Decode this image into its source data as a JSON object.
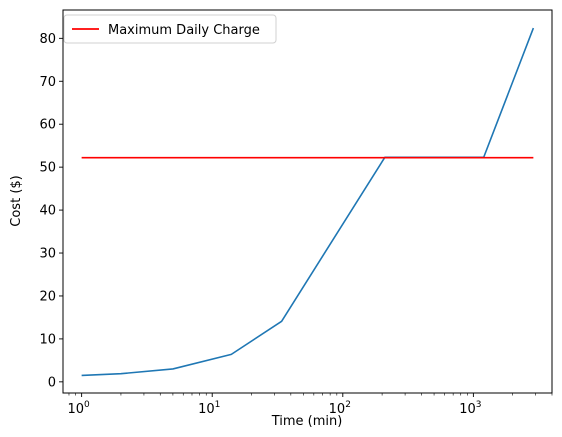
{
  "chart_data": {
    "type": "line",
    "title": "",
    "xlabel": "Time (min)",
    "ylabel": "Cost ($)",
    "xscale": "log",
    "xlim": [
      0.72,
      4000
    ],
    "ylim": [
      -2.6,
      86.6
    ],
    "grid": false,
    "legend_position": "top-left",
    "x_ticks": [
      {
        "value": 1,
        "base": "10",
        "exp": "0"
      },
      {
        "value": 10,
        "base": "10",
        "exp": "1"
      },
      {
        "value": 100,
        "base": "10",
        "exp": "2"
      },
      {
        "value": 1000,
        "base": "10",
        "exp": "3"
      }
    ],
    "y_ticks": [
      0,
      10,
      20,
      30,
      40,
      50,
      60,
      70,
      80
    ],
    "series": [
      {
        "name": "",
        "color": "#1f77b4",
        "points": [
          {
            "x": 1,
            "y": 1.5
          },
          {
            "x": 2,
            "y": 1.9
          },
          {
            "x": 5,
            "y": 3.0
          },
          {
            "x": 14,
            "y": 6.4
          },
          {
            "x": 34,
            "y": 14.1
          },
          {
            "x": 210,
            "y": 52.3
          },
          {
            "x": 1200,
            "y": 52.3
          },
          {
            "x": 2880,
            "y": 82.4
          }
        ]
      },
      {
        "name": "Maximum Daily Charge",
        "color": "#ff0000",
        "points": [
          {
            "x": 1,
            "y": 52.2
          },
          {
            "x": 2880,
            "y": 52.2
          }
        ]
      }
    ]
  }
}
